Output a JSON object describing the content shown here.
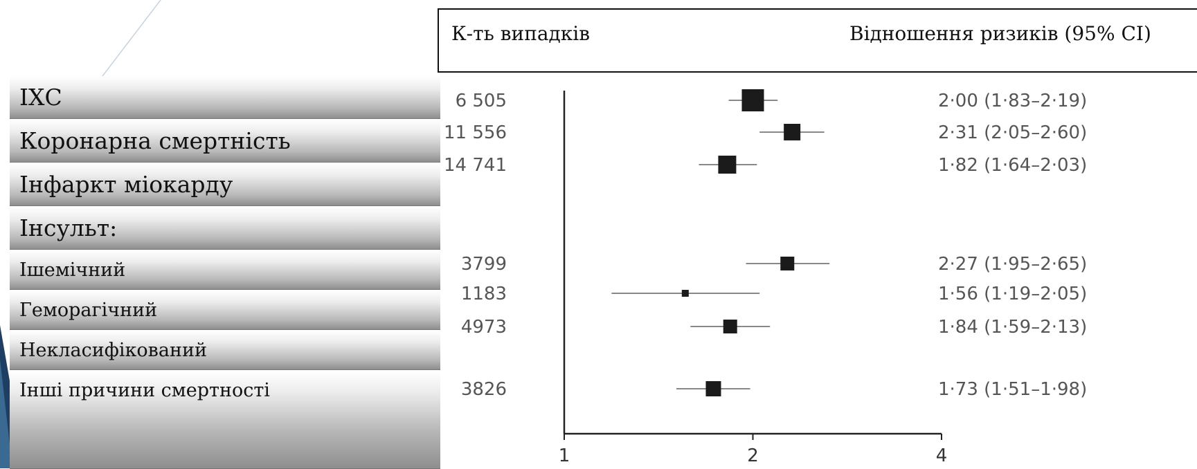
{
  "chart_data": {
    "type": "forest",
    "header_cases": "К-ть випадків",
    "header_estimate": "Відношення ризиків (95% CI)",
    "rows": [
      {
        "label": "ІХС",
        "cases": "6 505",
        "hr": 2.0,
        "ci": [
          1.83,
          2.19
        ],
        "text": "2·00 (1·83–2·19)"
      },
      {
        "label": "Коронарна смертність",
        "cases": "11 556",
        "hr": 2.31,
        "ci": [
          2.05,
          2.6
        ],
        "text": "2·31 (2·05–2·60)"
      },
      {
        "label": "Інфаркт міокарду",
        "cases": "14 741",
        "hr": 1.82,
        "ci": [
          1.64,
          2.03
        ],
        "text": "1·82 (1·64–2·03)"
      },
      {
        "label": "Інсульт:",
        "cases": "",
        "hr": null,
        "ci": null,
        "text": ""
      },
      {
        "label": "Ішемічний",
        "cases": "3799",
        "hr": 2.27,
        "ci": [
          1.95,
          2.65
        ],
        "text": "2·27 (1·95–2·65)"
      },
      {
        "label": "Геморагічний",
        "cases": "1183",
        "hr": 1.56,
        "ci": [
          1.19,
          2.05
        ],
        "text": "1·56 (1·19–2·05)"
      },
      {
        "label": "Некласифікований",
        "cases": "4973",
        "hr": 1.84,
        "ci": [
          1.59,
          2.13
        ],
        "text": "1·84 (1·59–2·13)"
      },
      {
        "label": "Інші причини смертності",
        "cases": "3826",
        "hr": 1.73,
        "ci": [
          1.51,
          1.98
        ],
        "text": "1·73 (1·51–1·98)"
      }
    ],
    "x_axis": {
      "scale": "log",
      "ticks": [
        1,
        2,
        4
      ],
      "tick_labels": [
        "1",
        "2",
        "4"
      ],
      "range": [
        1,
        4
      ]
    }
  }
}
